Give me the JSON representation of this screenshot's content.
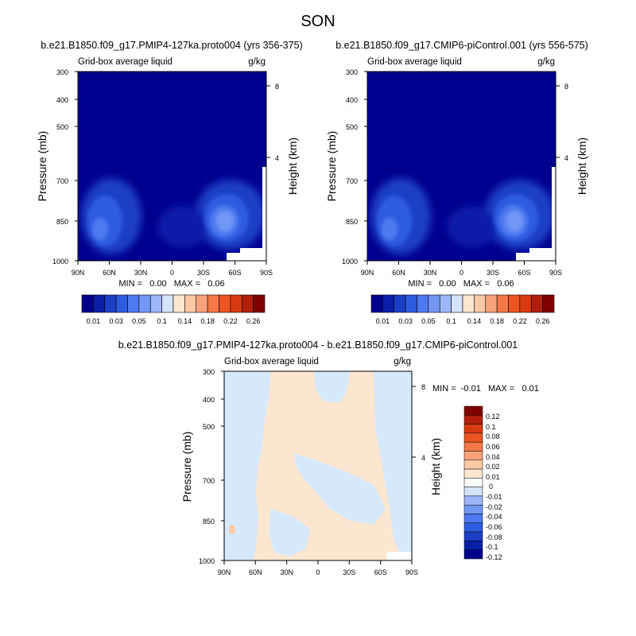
{
  "figure": {
    "title": "SON"
  },
  "colors": {
    "level_palette": [
      "#00008f",
      "#0a1fa8",
      "#1a3fc4",
      "#2e5ce0",
      "#4d7af0",
      "#7297f5",
      "#9db6f7",
      "#d3e3fa",
      "#fde6d0",
      "#fbc9a6",
      "#f7a27a",
      "#f57848",
      "#ec5520",
      "#d93a0f",
      "#b21f0a",
      "#800000"
    ],
    "diff_palette": [
      "#00008f",
      "#0a1fa8",
      "#1a3fc4",
      "#2e5ce0",
      "#4d7af0",
      "#7297f5",
      "#9db6f7",
      "#d3e3fa",
      "#ffffff",
      "#fde6d0",
      "#fbc9a6",
      "#f7a27a",
      "#f57848",
      "#ec5520",
      "#d93a0f",
      "#b21f0a",
      "#800000"
    ],
    "background_low": "#00008f",
    "diff_positive": "#fde6d0",
    "diff_negative": "#d6e8fb"
  },
  "chart_data": [
    {
      "type": "heatmap",
      "title": "b.e21.B1850.f09_g17.PMIP4-127ka.proto004 (yrs 356-375)",
      "left_label": "Grid-box average liquid",
      "right_label": "g/kg",
      "xlabel": "",
      "ylabel": "Pressure (mb)",
      "y2label": "Height (km)",
      "x_ticks": [
        "90N",
        "60N",
        "30N",
        "0",
        "30S",
        "60S",
        "90S"
      ],
      "y_ticks": [
        "300",
        "400",
        "500",
        "700",
        "850",
        "1000"
      ],
      "y2_ticks": [
        "8",
        "4"
      ],
      "x_range": [
        90,
        -90
      ],
      "y_range": [
        1000,
        300
      ],
      "y_scale": "log",
      "min_max_text": "MIN =   0.00   MAX =   0.06",
      "min": 0.0,
      "max": 0.06,
      "colorbar": {
        "orientation": "horizontal",
        "labels": [
          "0.01",
          "0.03",
          "0.05",
          "0.1",
          "0.14",
          "0.18",
          "0.22",
          "0.26"
        ]
      },
      "features": [
        {
          "lat": 62,
          "p": 840,
          "value": 0.05
        },
        {
          "lat": 45,
          "p": 770,
          "value": 0.02
        },
        {
          "lat": 10,
          "p": 900,
          "value": 0.01
        },
        {
          "lat": -10,
          "p": 830,
          "value": 0.02
        },
        {
          "lat": -35,
          "p": 830,
          "value": 0.05
        },
        {
          "lat": -45,
          "p": 760,
          "value": 0.03
        }
      ]
    },
    {
      "type": "heatmap",
      "title": "b.e21.B1850.f09_g17.CMIP6-piControl.001 (yrs 556-575)",
      "left_label": "Grid-box average liquid",
      "right_label": "g/kg",
      "xlabel": "",
      "ylabel": "Pressure (mb)",
      "y2label": "Height (km)",
      "x_ticks": [
        "90N",
        "60N",
        "30N",
        "0",
        "30S",
        "60S",
        "90S"
      ],
      "y_ticks": [
        "300",
        "400",
        "500",
        "700",
        "850",
        "1000"
      ],
      "y2_ticks": [
        "8",
        "4"
      ],
      "x_range": [
        90,
        -90
      ],
      "y_range": [
        1000,
        300
      ],
      "y_scale": "log",
      "min_max_text": "MIN =   0.00   MAX =   0.06",
      "min": 0.0,
      "max": 0.06,
      "colorbar": {
        "orientation": "horizontal",
        "labels": [
          "0.01",
          "0.03",
          "0.05",
          "0.1",
          "0.14",
          "0.18",
          "0.22",
          "0.26"
        ]
      },
      "features": [
        {
          "lat": 62,
          "p": 840,
          "value": 0.05
        },
        {
          "lat": 45,
          "p": 770,
          "value": 0.02
        },
        {
          "lat": 10,
          "p": 900,
          "value": 0.01
        },
        {
          "lat": -10,
          "p": 830,
          "value": 0.02
        },
        {
          "lat": -35,
          "p": 830,
          "value": 0.05
        },
        {
          "lat": -45,
          "p": 760,
          "value": 0.03
        }
      ]
    },
    {
      "type": "heatmap",
      "title": "b.e21.B1850.f09_g17.PMIP4-127ka.proto004 - b.e21.B1850.f09_g17.CMIP6-piControl.001",
      "left_label": "Grid-box average liquid",
      "right_label": "g/kg",
      "xlabel": "",
      "ylabel": "Pressure (mb)",
      "y2label": "Height (km)",
      "x_ticks": [
        "90N",
        "60N",
        "30N",
        "0",
        "30S",
        "60S",
        "90S"
      ],
      "y_ticks": [
        "300",
        "400",
        "500",
        "700",
        "850",
        "1000"
      ],
      "y2_ticks": [
        "8",
        "4"
      ],
      "x_range": [
        90,
        -90
      ],
      "y_range": [
        1000,
        300
      ],
      "y_scale": "log",
      "min_max_text": "MIN =  -0.01   MAX =   0.01",
      "min": -0.01,
      "max": 0.01,
      "colorbar": {
        "orientation": "vertical",
        "labels": [
          "0.12",
          "0.1",
          "0.08",
          "0.06",
          "0.04",
          "0.02",
          "0.01",
          "0",
          "-0.01",
          "-0.02",
          "-0.04",
          "-0.06",
          "-0.08",
          "-0.1",
          "-0.12"
        ]
      }
    }
  ]
}
